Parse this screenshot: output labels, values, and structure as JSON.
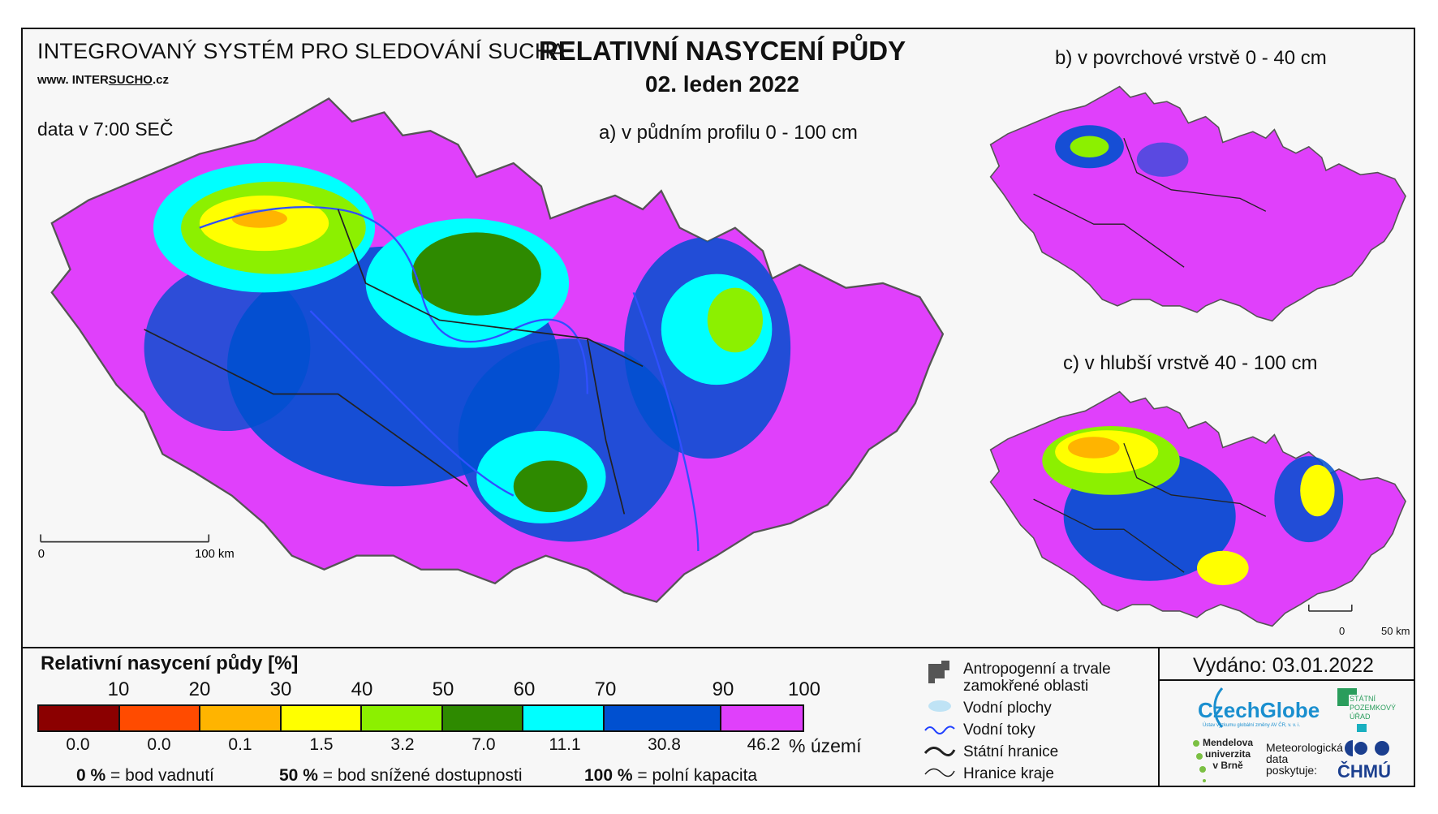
{
  "header": {
    "system_title": "INTEGROVANÝ SYSTÉM PRO SLEDOVÁNÍ SUCHA",
    "website_prefix": "www. INTER",
    "website_underlined": "SUCHO",
    "website_suffix": ".cz",
    "data_time": "data v 7:00 SEČ",
    "main_title": "RELATIVNÍ NASYCENÍ PŮDY",
    "date": "02. leden 2022"
  },
  "maps": {
    "a_label": "a) v půdním profilu 0 - 100 cm",
    "b_label": "b) v povrchové vrstvě 0 - 40 cm",
    "c_label": "c) v hlubší vrstvě 40 - 100 cm",
    "scale_main": {
      "zero": "0",
      "end": "100 km"
    },
    "scale_small": {
      "zero": "0",
      "end": "50 km"
    }
  },
  "legend": {
    "title": "Relativní nasycení půdy [%]",
    "ticks": [
      "10",
      "20",
      "30",
      "40",
      "50",
      "60",
      "70",
      "90",
      "100"
    ],
    "colors": [
      "#8b0000",
      "#ff4b00",
      "#ffb400",
      "#ffff00",
      "#8cf000",
      "#2e8a00",
      "#00ffff",
      "#0050d0",
      "#e040fb"
    ],
    "percentages": [
      "0.0",
      "0.0",
      "0.1",
      "1.5",
      "3.2",
      "7.0",
      "11.1",
      "30.8",
      "46.2"
    ],
    "percent_unit": "% území",
    "explanations": [
      {
        "value": "0 %",
        "text": "= bod vadnutí"
      },
      {
        "value": "50 %",
        "text": "= bod snížené dostupnosti"
      },
      {
        "value": "100 %",
        "text": "= polní kapacita"
      }
    ]
  },
  "symbols": {
    "anthropogenic": "Antropogenní a trvale zamokřené oblasti",
    "anthropogenic_line1": "Antropogenní a trvale",
    "anthropogenic_line2": "zamokřené oblasti",
    "water_bodies": "Vodní plochy",
    "rivers": "Vodní toky",
    "state_border": "Státní hranice",
    "region_border": "Hranice kraje"
  },
  "footer": {
    "issued": "Vydáno: 03.01.2022",
    "czechglobe": "CzechGlobe",
    "czechglobe_sub": "Ústav výzkumu globální změny AV ČR, v. v. i.",
    "spu_line1": "STÁTNÍ",
    "spu_line2": "POZEMKOVÝ",
    "spu_line3": "ÚŘAD",
    "mendel_line1": "Mendelova",
    "mendel_line2": "univerzita",
    "mendel_line3": "v Brně",
    "met_line1": "Meteorologická",
    "met_line2": "data",
    "met_line3": "poskytuje:",
    "chmu": "ČHMÚ"
  }
}
